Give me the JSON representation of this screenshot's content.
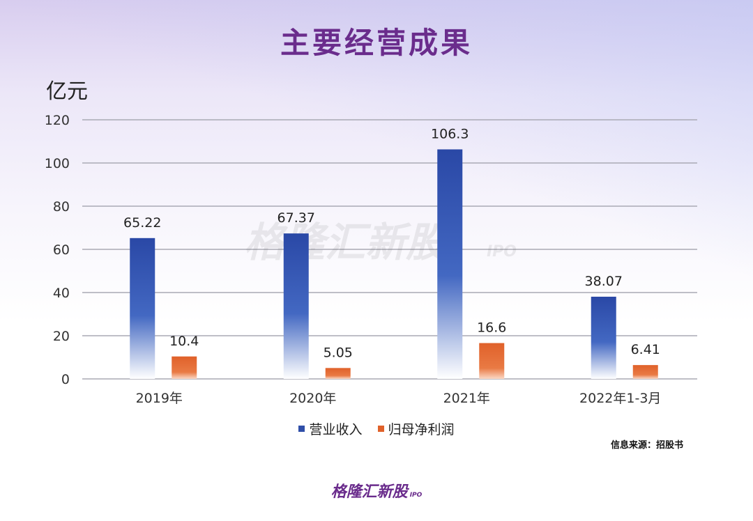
{
  "title": "主要经营成果",
  "unit_label": "亿元",
  "source": "信息来源：招股书",
  "footer_logo": {
    "text": "格隆汇新股",
    "suffix": "IPO"
  },
  "watermark": {
    "text": "格隆汇新股",
    "suffix": "IPO"
  },
  "chart_data": {
    "type": "bar",
    "categories": [
      "2019年",
      "2020年",
      "2021年",
      "2022年1-3月"
    ],
    "series": [
      {
        "name": "营业收入",
        "values": [
          65.22,
          67.37,
          106.3,
          38.07
        ],
        "labels": [
          "65.22",
          "67.37",
          "106.3",
          "38.07"
        ],
        "color": "#2f4ea8"
      },
      {
        "name": "归母净利润",
        "values": [
          10.4,
          5.05,
          16.6,
          6.41
        ],
        "labels": [
          "10.4",
          "5.05",
          "16.6",
          "6.41"
        ],
        "color": "#e0612a"
      }
    ],
    "ylim": [
      0,
      120
    ],
    "yticks": [
      "0",
      "20",
      "40",
      "60",
      "80",
      "100",
      "120"
    ],
    "grid": true,
    "legend_position": "bottom"
  }
}
